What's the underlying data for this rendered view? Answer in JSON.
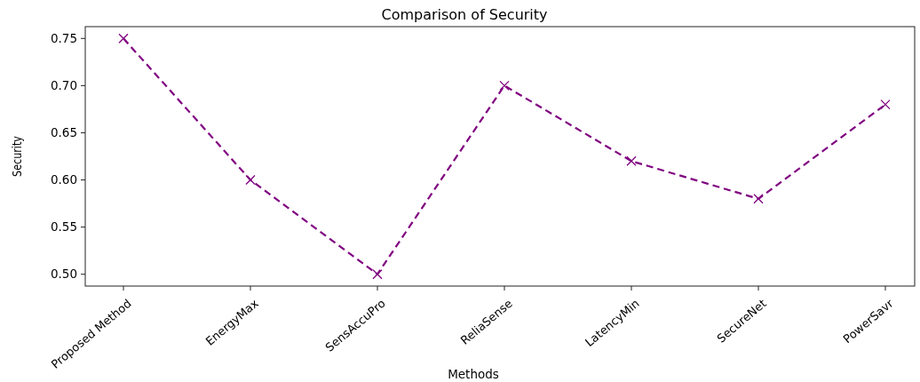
{
  "chart_data": {
    "type": "line",
    "title": "Comparison of Security",
    "xlabel": "Methods",
    "ylabel": "Security",
    "categories": [
      "Proposed Method",
      "EnergyMax",
      "SensAccuPro",
      "ReliaSense",
      "LatencyMin",
      "SecureNet",
      "PowerSavr"
    ],
    "series": [
      {
        "color": "#800080",
        "values": [
          0.75,
          0.6,
          0.5,
          0.7,
          0.62,
          0.58,
          0.68
        ]
      }
    ],
    "ylim": [
      0.4875,
      0.7625
    ],
    "yticks": [
      {
        "value": 0.5,
        "label": "0.50"
      },
      {
        "value": 0.55,
        "label": "0.55"
      },
      {
        "value": 0.6,
        "label": "0.60"
      },
      {
        "value": 0.65,
        "label": "0.65"
      },
      {
        "value": 0.7,
        "label": "0.70"
      },
      {
        "value": 0.75,
        "label": "0.75"
      }
    ],
    "grid": false,
    "marker": "cross",
    "line_style": "dashed"
  }
}
